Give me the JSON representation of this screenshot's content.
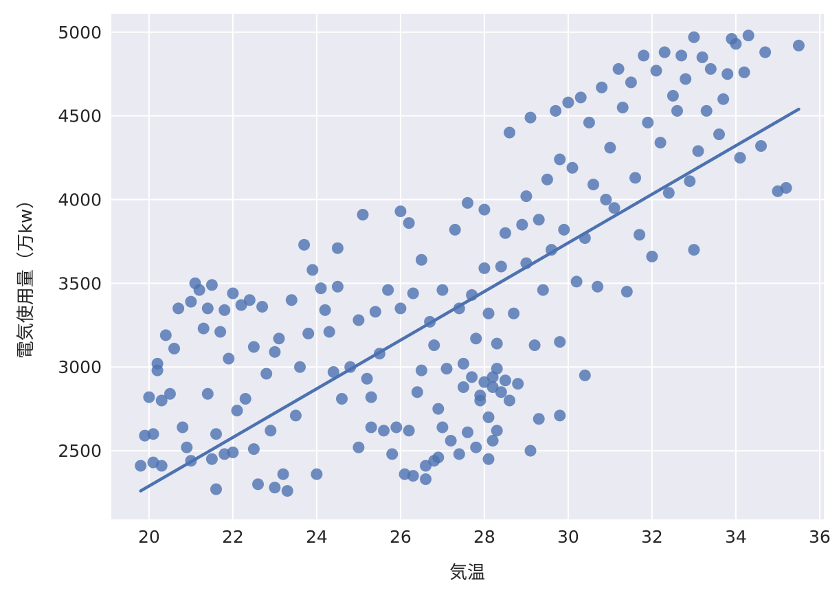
{
  "chart_data": {
    "type": "scatter",
    "title": "",
    "xlabel": "気温",
    "ylabel": "電気使用量（万kw）",
    "xlim": [
      19.1,
      36.1
    ],
    "ylim": [
      2090,
      5110
    ],
    "xticks": [
      20,
      22,
      24,
      26,
      28,
      30,
      32,
      34,
      36
    ],
    "xtick_labels": [
      "20",
      "22",
      "24",
      "26",
      "28",
      "30",
      "32",
      "34",
      "36"
    ],
    "yticks": [
      2500,
      3000,
      3500,
      4000,
      4500,
      5000
    ],
    "ytick_labels": [
      "2500",
      "3000",
      "3500",
      "4000",
      "4500",
      "5000"
    ],
    "grid": true,
    "legend": "none",
    "colors": {
      "background": "#eaeaf2",
      "grid": "#ffffff",
      "points": "#4c72b0",
      "line": "#4c72b0"
    },
    "regression_line": {
      "x": [
        19.8,
        35.5
      ],
      "y": [
        2260,
        4540
      ]
    },
    "points": [
      [
        19.8,
        2410
      ],
      [
        19.9,
        2590
      ],
      [
        20.0,
        2820
      ],
      [
        20.1,
        2430
      ],
      [
        20.1,
        2600
      ],
      [
        20.2,
        3020
      ],
      [
        20.2,
        2980
      ],
      [
        20.3,
        2800
      ],
      [
        20.3,
        2410
      ],
      [
        20.4,
        3190
      ],
      [
        20.5,
        2840
      ],
      [
        20.6,
        3110
      ],
      [
        20.7,
        3350
      ],
      [
        20.8,
        2640
      ],
      [
        20.9,
        2520
      ],
      [
        21.0,
        3390
      ],
      [
        21.0,
        2440
      ],
      [
        21.1,
        3500
      ],
      [
        21.2,
        3460
      ],
      [
        21.3,
        3230
      ],
      [
        21.4,
        3350
      ],
      [
        21.4,
        2840
      ],
      [
        21.5,
        3490
      ],
      [
        21.5,
        2450
      ],
      [
        21.6,
        2270
      ],
      [
        21.6,
        2600
      ],
      [
        21.7,
        3210
      ],
      [
        21.8,
        3340
      ],
      [
        21.8,
        2480
      ],
      [
        21.9,
        3050
      ],
      [
        22.0,
        3440
      ],
      [
        22.0,
        2490
      ],
      [
        22.1,
        2740
      ],
      [
        22.2,
        3370
      ],
      [
        22.3,
        2810
      ],
      [
        22.4,
        3400
      ],
      [
        22.5,
        3120
      ],
      [
        22.5,
        2510
      ],
      [
        22.6,
        2300
      ],
      [
        22.7,
        3360
      ],
      [
        22.8,
        2960
      ],
      [
        22.9,
        2620
      ],
      [
        23.0,
        3090
      ],
      [
        23.0,
        2280
      ],
      [
        23.1,
        3170
      ],
      [
        23.2,
        2360
      ],
      [
        23.3,
        2260
      ],
      [
        23.4,
        3400
      ],
      [
        23.5,
        2710
      ],
      [
        23.6,
        3000
      ],
      [
        23.7,
        3730
      ],
      [
        23.8,
        3200
      ],
      [
        23.9,
        3580
      ],
      [
        24.0,
        2360
      ],
      [
        24.1,
        3470
      ],
      [
        24.2,
        3340
      ],
      [
        24.3,
        3210
      ],
      [
        24.4,
        2970
      ],
      [
        24.5,
        3710
      ],
      [
        24.5,
        3480
      ],
      [
        24.6,
        2810
      ],
      [
        24.8,
        3000
      ],
      [
        25.0,
        3280
      ],
      [
        25.0,
        2520
      ],
      [
        25.1,
        3910
      ],
      [
        25.2,
        2930
      ],
      [
        25.3,
        2820
      ],
      [
        25.4,
        3330
      ],
      [
        25.5,
        3080
      ],
      [
        25.6,
        2620
      ],
      [
        25.7,
        3460
      ],
      [
        25.8,
        2480
      ],
      [
        26.0,
        3930
      ],
      [
        26.0,
        3350
      ],
      [
        26.1,
        2360
      ],
      [
        26.2,
        3860
      ],
      [
        26.3,
        3440
      ],
      [
        26.4,
        2850
      ],
      [
        26.5,
        3640
      ],
      [
        26.6,
        2410
      ],
      [
        26.7,
        3270
      ],
      [
        26.8,
        3130
      ],
      [
        26.9,
        2750
      ],
      [
        27.0,
        3460
      ],
      [
        27.1,
        2990
      ],
      [
        27.2,
        2560
      ],
      [
        27.3,
        3820
      ],
      [
        27.4,
        3350
      ],
      [
        27.5,
        2880
      ],
      [
        27.6,
        3980
      ],
      [
        27.7,
        3430
      ],
      [
        27.8,
        3170
      ],
      [
        27.9,
        2800
      ],
      [
        28.0,
        3940
      ],
      [
        28.0,
        3590
      ],
      [
        28.1,
        3320
      ],
      [
        28.2,
        2940
      ],
      [
        28.2,
        2560
      ],
      [
        28.3,
        3140
      ],
      [
        28.4,
        3600
      ],
      [
        28.5,
        3800
      ],
      [
        28.6,
        4400
      ],
      [
        28.7,
        3320
      ],
      [
        28.8,
        2900
      ],
      [
        28.9,
        3850
      ],
      [
        29.0,
        4020
      ],
      [
        29.0,
        3620
      ],
      [
        29.1,
        4490
      ],
      [
        29.2,
        3130
      ],
      [
        29.3,
        3880
      ],
      [
        29.4,
        3460
      ],
      [
        29.5,
        4120
      ],
      [
        29.6,
        3700
      ],
      [
        29.7,
        4530
      ],
      [
        29.8,
        4240
      ],
      [
        29.8,
        3150
      ],
      [
        29.9,
        3820
      ],
      [
        30.0,
        4580
      ],
      [
        30.1,
        4190
      ],
      [
        30.2,
        3510
      ],
      [
        30.3,
        4610
      ],
      [
        30.4,
        3770
      ],
      [
        30.5,
        4460
      ],
      [
        30.6,
        4090
      ],
      [
        30.7,
        3480
      ],
      [
        30.8,
        4670
      ],
      [
        30.9,
        4000
      ],
      [
        31.0,
        4310
      ],
      [
        31.1,
        3950
      ],
      [
        31.2,
        4780
      ],
      [
        31.3,
        4550
      ],
      [
        31.4,
        3450
      ],
      [
        31.5,
        4700
      ],
      [
        31.6,
        4130
      ],
      [
        31.7,
        3790
      ],
      [
        31.8,
        4860
      ],
      [
        31.9,
        4460
      ],
      [
        32.0,
        3660
      ],
      [
        32.1,
        4770
      ],
      [
        32.2,
        4340
      ],
      [
        32.3,
        4880
      ],
      [
        32.4,
        4040
      ],
      [
        32.5,
        4620
      ],
      [
        32.6,
        4530
      ],
      [
        32.7,
        4860
      ],
      [
        32.8,
        4720
      ],
      [
        32.9,
        4110
      ],
      [
        33.0,
        4970
      ],
      [
        33.0,
        3700
      ],
      [
        33.1,
        4290
      ],
      [
        33.2,
        4850
      ],
      [
        33.3,
        4530
      ],
      [
        33.4,
        4780
      ],
      [
        33.6,
        4390
      ],
      [
        33.7,
        4600
      ],
      [
        33.8,
        4750
      ],
      [
        33.9,
        4960
      ],
      [
        34.0,
        4930
      ],
      [
        34.1,
        4250
      ],
      [
        34.2,
        4760
      ],
      [
        34.3,
        4980
      ],
      [
        34.6,
        4320
      ],
      [
        34.7,
        4880
      ],
      [
        35.0,
        4050
      ],
      [
        35.2,
        4070
      ],
      [
        35.5,
        4920
      ],
      [
        26.3,
        2350
      ],
      [
        26.9,
        2460
      ],
      [
        27.4,
        2480
      ],
      [
        27.8,
        2520
      ],
      [
        28.1,
        2450
      ],
      [
        28.3,
        2620
      ],
      [
        27.6,
        2610
      ],
      [
        28.6,
        2800
      ],
      [
        28.4,
        2850
      ],
      [
        28.2,
        2880
      ],
      [
        28.0,
        2910
      ],
      [
        27.9,
        2830
      ],
      [
        28.5,
        2920
      ],
      [
        28.1,
        2700
      ],
      [
        27.7,
        2940
      ],
      [
        28.3,
        2990
      ],
      [
        27.5,
        3020
      ],
      [
        29.3,
        2690
      ],
      [
        29.8,
        2710
      ],
      [
        30.4,
        2950
      ],
      [
        29.1,
        2500
      ],
      [
        26.6,
        2330
      ],
      [
        26.5,
        2980
      ],
      [
        26.8,
        2440
      ],
      [
        27.0,
        2640
      ],
      [
        26.2,
        2620
      ],
      [
        25.3,
        2640
      ],
      [
        25.9,
        2640
      ]
    ]
  }
}
